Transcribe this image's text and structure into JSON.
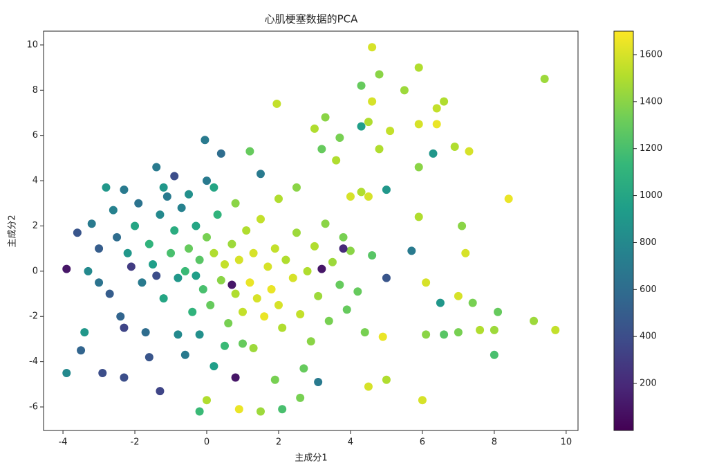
{
  "chart_data": {
    "type": "scatter",
    "title": "心肌梗塞数据的PCA",
    "x_label": "主成分1",
    "y_label": "主成分2",
    "colormap": "viridis",
    "clim": [
      0,
      1700
    ],
    "colorbar_ticks": [
      200,
      400,
      600,
      800,
      1000,
      1200,
      1400,
      1600
    ],
    "xlim": [
      -4.54,
      10.33
    ],
    "ylim": [
      -7.04,
      10.61
    ],
    "xticks": [
      -4,
      -2,
      0,
      2,
      4,
      6,
      8,
      10
    ],
    "yticks": [
      -6,
      -4,
      -2,
      0,
      2,
      4,
      6,
      8,
      10
    ],
    "x": [
      4.6,
      5.9,
      9.4,
      4.8,
      4.3,
      5.5,
      1.95,
      4.6,
      6.6,
      6.4,
      3.3,
      5.9,
      6.4,
      4.5,
      3.0,
      5.1,
      4.3,
      -0.05,
      0.4,
      1.2,
      6.3,
      6.9,
      7.3,
      3.2,
      3.7,
      5.9,
      4.8,
      3.6,
      -1.4,
      -0.9,
      1.5,
      0.0,
      2.5,
      4.3,
      5.0,
      8.4,
      4.5,
      4.0,
      7.1,
      5.9,
      5.7,
      7.2,
      6.1,
      5.0,
      7.0,
      7.4,
      6.5,
      8.1,
      9.1,
      9.7,
      7.6,
      7.0,
      8.0,
      6.1,
      6.6,
      8.0,
      4.9,
      5.0,
      4.5,
      6.0,
      3.1,
      2.6,
      1.9,
      0.0,
      -0.2,
      0.9,
      1.5,
      2.1,
      0.8,
      -1.3,
      -2.3,
      -2.9,
      -3.9,
      -3.5,
      -3.4,
      -3.9,
      -3.6,
      -3.2,
      -2.8,
      -2.3,
      -1.2,
      -2.5,
      -2.2,
      -2.0,
      -1.8,
      -1.6,
      -1.5,
      -1.3,
      -1.2,
      -1.0,
      -0.9,
      -0.8,
      -0.7,
      -0.6,
      -0.5,
      -0.4,
      -0.3,
      -0.2,
      -0.1,
      0.0,
      0.1,
      0.2,
      0.3,
      0.4,
      0.5,
      0.6,
      0.7,
      0.8,
      0.9,
      1.0,
      1.1,
      1.2,
      1.3,
      1.4,
      1.5,
      1.6,
      1.7,
      1.8,
      1.9,
      2.0,
      2.1,
      2.2,
      2.4,
      2.5,
      2.6,
      2.8,
      2.9,
      3.0,
      3.1,
      3.3,
      3.4,
      3.5,
      3.7,
      3.8,
      3.9,
      4.0,
      4.2,
      4.4,
      4.6,
      -2.7,
      -2.4,
      -2.1,
      -1.9,
      -1.7,
      -1.4,
      -1.1,
      -0.8,
      -0.5,
      -0.2,
      0.2,
      0.5,
      0.8,
      1.0,
      -3.0,
      -3.0,
      -2.6,
      -2.3,
      -3.3,
      -0.3,
      0.7,
      1.3,
      2.0,
      0.2,
      -0.6,
      -1.6,
      3.2,
      3.8,
      2.7
    ],
    "values": [
      9.9,
      9.0,
      8.5,
      8.7,
      8.2,
      8.0,
      7.4,
      7.5,
      7.5,
      7.2,
      6.8,
      6.5,
      6.5,
      6.6,
      6.3,
      6.2,
      6.4,
      5.8,
      5.2,
      5.3,
      5.2,
      5.5,
      5.3,
      5.4,
      5.9,
      4.6,
      5.4,
      4.9,
      4.6,
      4.2,
      4.3,
      4.0,
      3.7,
      3.5,
      3.6,
      3.2,
      3.3,
      3.3,
      2.0,
      2.4,
      0.9,
      0.8,
      -0.5,
      -0.3,
      -1.1,
      -1.4,
      -1.4,
      -1.8,
      -2.2,
      -2.6,
      -2.6,
      -2.7,
      -2.6,
      -2.8,
      -2.8,
      -3.7,
      -2.9,
      -4.8,
      -5.1,
      -5.7,
      -4.9,
      -5.6,
      -4.8,
      -5.7,
      -6.2,
      -6.1,
      -6.2,
      -6.1,
      -4.7,
      -5.3,
      -4.7,
      -4.5,
      -4.5,
      -3.5,
      -2.7,
      0.1,
      1.7,
      2.1,
      3.7,
      3.6,
      3.7,
      1.5,
      0.8,
      2.0,
      -0.5,
      1.2,
      0.3,
      2.5,
      -1.2,
      0.8,
      1.8,
      -0.3,
      2.8,
      0.0,
      1.0,
      -1.8,
      2.0,
      0.5,
      -0.8,
      1.5,
      -1.5,
      0.8,
      2.5,
      -0.4,
      0.3,
      -2.3,
      1.2,
      -1.0,
      0.5,
      -1.8,
      1.8,
      -0.5,
      0.8,
      -1.2,
      2.3,
      -2.0,
      0.2,
      -0.8,
      1.0,
      -1.5,
      -2.5,
      0.5,
      -0.3,
      1.7,
      -1.9,
      0.0,
      -3.1,
      1.1,
      -1.1,
      2.1,
      -2.2,
      0.4,
      -0.6,
      1.5,
      -1.7,
      0.9,
      -0.9,
      -2.7,
      0.7,
      -1.0,
      -2.0,
      0.2,
      3.0,
      -2.7,
      -0.2,
      3.3,
      -2.8,
      3.4,
      -2.8,
      3.7,
      -3.3,
      3.0,
      -3.2,
      -0.5,
      1.0,
      2.7,
      -2.5,
      0.0,
      -0.2,
      -0.6,
      -3.4,
      3.2,
      -4.2,
      -3.7,
      -3.8,
      0.1,
      1.0,
      -4.3
    ],
    "color_values": [
      1600,
      1500,
      1450,
      1400,
      1300,
      1450,
      1550,
      1600,
      1500,
      1550,
      1400,
      1600,
      1650,
      1500,
      1500,
      1550,
      950,
      700,
      600,
      1300,
      900,
      1500,
      1600,
      1300,
      1350,
      1400,
      1500,
      1500,
      700,
      400,
      700,
      700,
      1400,
      1500,
      900,
      1650,
      1600,
      1600,
      1400,
      1500,
      700,
      1600,
      1600,
      450,
      1600,
      1350,
      900,
      1300,
      1450,
      1550,
      1500,
      1350,
      1450,
      1400,
      1250,
      1200,
      1650,
      1500,
      1600,
      1600,
      700,
      1350,
      1350,
      1500,
      1150,
      1650,
      1450,
      1200,
      100,
      350,
      400,
      400,
      800,
      550,
      900,
      100,
      450,
      700,
      900,
      700,
      900,
      600,
      900,
      1000,
      700,
      1100,
      950,
      800,
      1000,
      1200,
      1050,
      900,
      750,
      1150,
      1300,
      1100,
      1000,
      1250,
      1200,
      1350,
      1300,
      1500,
      1100,
      1400,
      1550,
      1350,
      1450,
      1500,
      1600,
      1550,
      1500,
      1650,
      1600,
      1600,
      1550,
      1650,
      1600,
      1650,
      1550,
      1600,
      1500,
      1500,
      1600,
      1450,
      1550,
      1500,
      1400,
      1500,
      1450,
      1400,
      1350,
      1450,
      1300,
      1350,
      1300,
      1400,
      1300,
      1350,
      1250,
      500,
      550,
      300,
      650,
      600,
      400,
      700,
      800,
      850,
      850,
      1000,
      1150,
      1400,
      1300,
      650,
      500,
      750,
      350,
      800,
      950,
      100,
      1450,
      1500,
      950,
      700,
      450,
      100,
      200,
      1300
    ]
  }
}
